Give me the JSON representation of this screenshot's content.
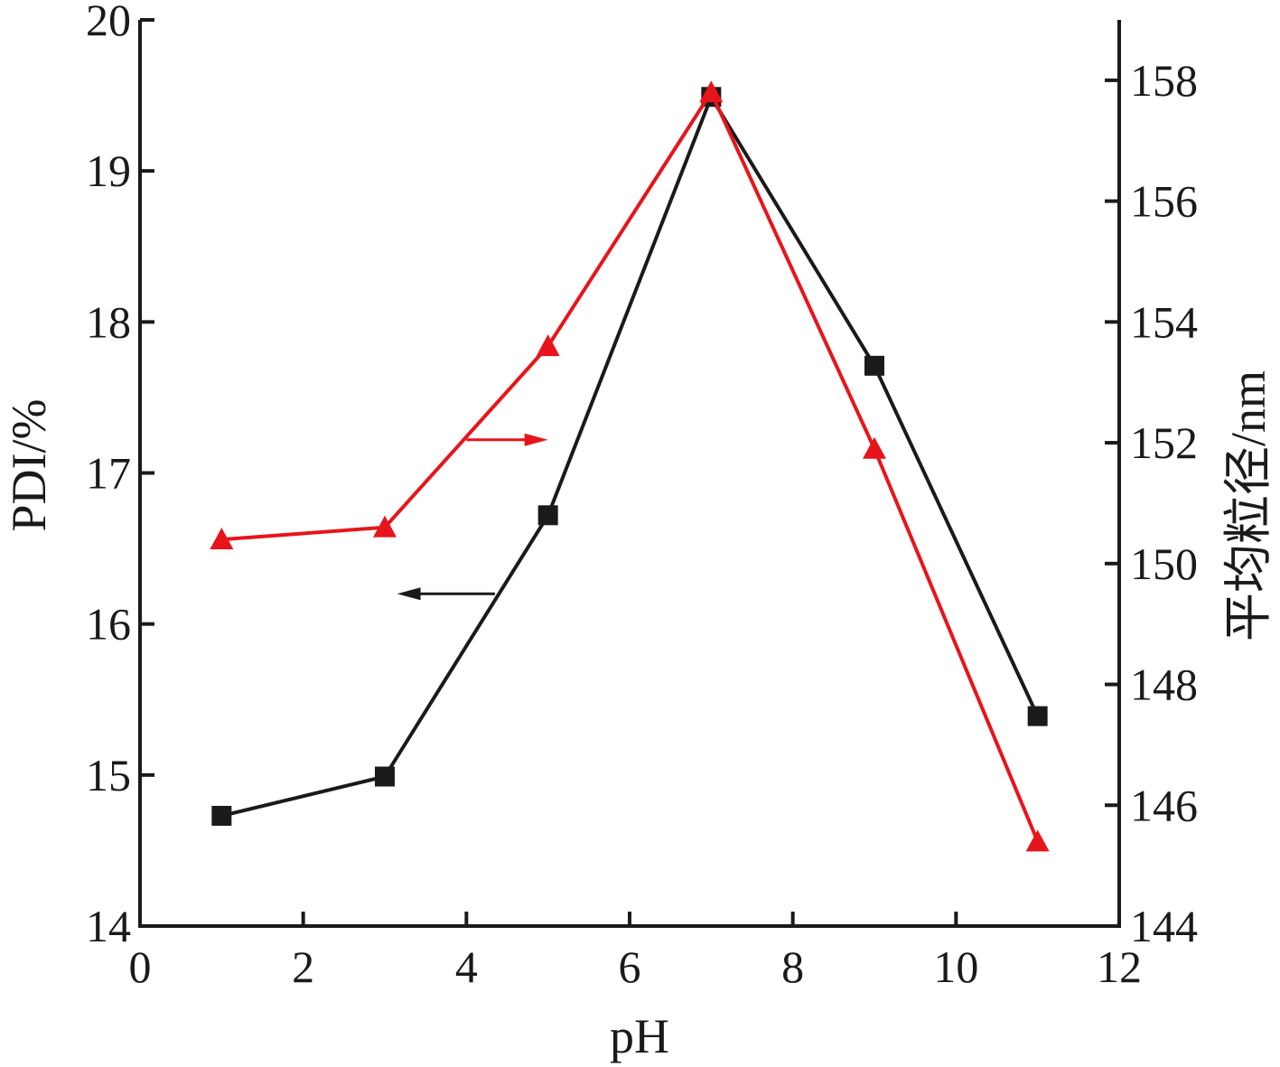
{
  "chart_data": {
    "type": "line",
    "xlabel": "pH",
    "ylabel_left": "PDI/%",
    "ylabel_right": "平均粒径/nm",
    "xlim": [
      0,
      12
    ],
    "ylim_left": [
      14,
      20
    ],
    "ylim_right": [
      144,
      159
    ],
    "x_ticks": [
      0,
      2,
      4,
      6,
      8,
      10,
      12
    ],
    "y_left_ticks": [
      14,
      15,
      16,
      17,
      18,
      19,
      20
    ],
    "y_right_ticks": [
      144,
      146,
      148,
      150,
      152,
      154,
      156,
      158
    ],
    "grid": false,
    "series": [
      {
        "axis": "left",
        "marker": "square",
        "color": "#1a1a1a",
        "x": [
          1,
          3,
          5,
          7,
          9,
          11
        ],
        "values": [
          14.73,
          14.99,
          16.72,
          19.49,
          17.71,
          15.39
        ]
      },
      {
        "axis": "right",
        "marker": "triangle",
        "color": "#e8141b",
        "x": [
          1,
          3,
          5,
          7,
          9,
          11
        ],
        "values": [
          150.4,
          150.6,
          153.6,
          157.8,
          151.9,
          145.4
        ]
      }
    ],
    "arrows": [
      {
        "points_to": "left",
        "color": "#1a1a1a",
        "x_from": 4.35,
        "x_to": 3.15,
        "y_left": 16.2
      },
      {
        "points_to": "right",
        "color": "#e8141b",
        "x_from": 4.0,
        "x_to": 5.0,
        "y_left": 17.22
      }
    ]
  }
}
